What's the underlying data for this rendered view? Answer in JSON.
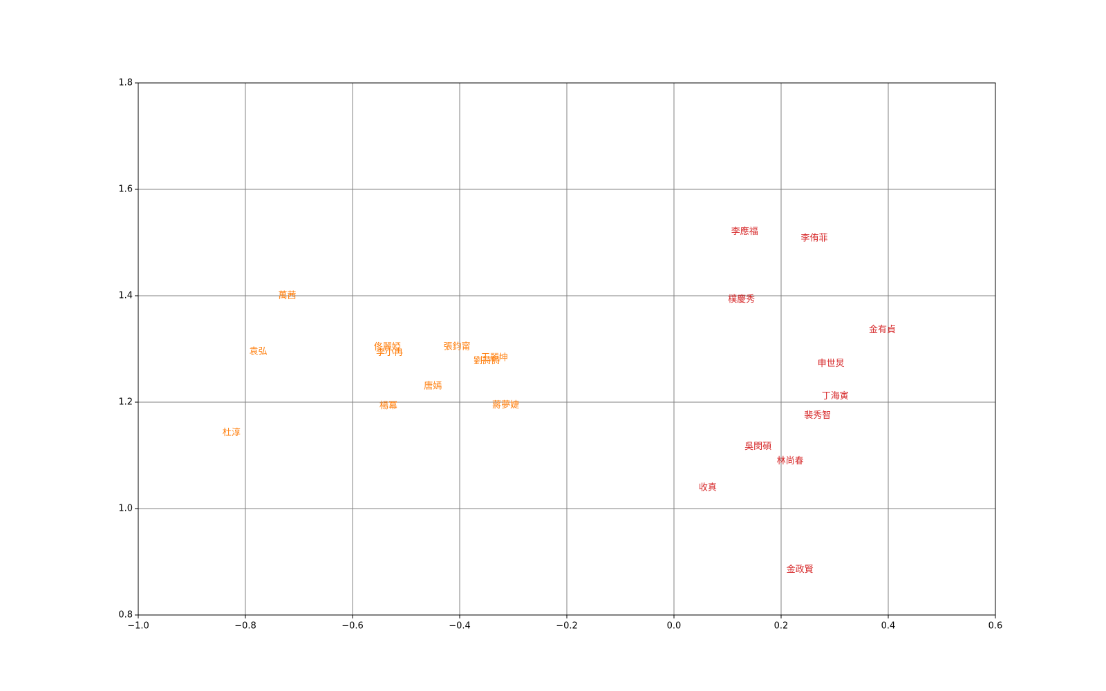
{
  "chart_data": {
    "type": "scatter",
    "grid": true,
    "xlim": [
      -1.0,
      0.6
    ],
    "ylim": [
      0.8,
      1.8
    ],
    "xticks": [
      {
        "value": -1.0,
        "label": "−1.0"
      },
      {
        "value": -0.8,
        "label": "−0.8"
      },
      {
        "value": -0.6,
        "label": "−0.6"
      },
      {
        "value": -0.4,
        "label": "−0.4"
      },
      {
        "value": -0.2,
        "label": "−0.2"
      },
      {
        "value": 0.0,
        "label": "0.0"
      },
      0.2,
      0.4,
      0.6
    ],
    "yticks": [
      0.8,
      {
        "value": 1.0,
        "label": "1.0"
      },
      1.2,
      1.4,
      1.6,
      1.8
    ],
    "series": [
      {
        "color": "#ff7f0e",
        "labels": [
          "萬茜",
          "袁弘",
          "杜淳",
          "佟麗婭",
          "李小冉",
          "張鈞甯",
          "王麗坤",
          "劉詩詩",
          "唐嫣",
          "楊冪",
          "蔣夢婕"
        ],
        "x": [
          -0.722,
          -0.776,
          -0.826,
          -0.535,
          -0.531,
          -0.405,
          -0.335,
          -0.349,
          -0.45,
          -0.533,
          -0.314
        ],
        "y": [
          1.4,
          1.295,
          1.142,
          1.303,
          1.293,
          1.304,
          1.283,
          1.277,
          1.23,
          1.193,
          1.194
        ]
      },
      {
        "color": "#d62728",
        "labels": [
          "李應福",
          "李侑菲",
          "樸慶秀",
          "金有貞",
          "申世炅",
          "丁海寅",
          "裴秀智",
          "吳閔碩",
          "林尚春",
          "收真",
          "金政賢"
        ],
        "x": [
          0.132,
          0.262,
          0.126,
          0.389,
          0.293,
          0.301,
          0.268,
          0.157,
          0.217,
          0.063,
          0.235
        ],
        "y": [
          1.52,
          1.508,
          1.393,
          1.336,
          1.272,
          1.211,
          1.175,
          1.116,
          1.089,
          1.039,
          0.885
        ]
      }
    ]
  }
}
